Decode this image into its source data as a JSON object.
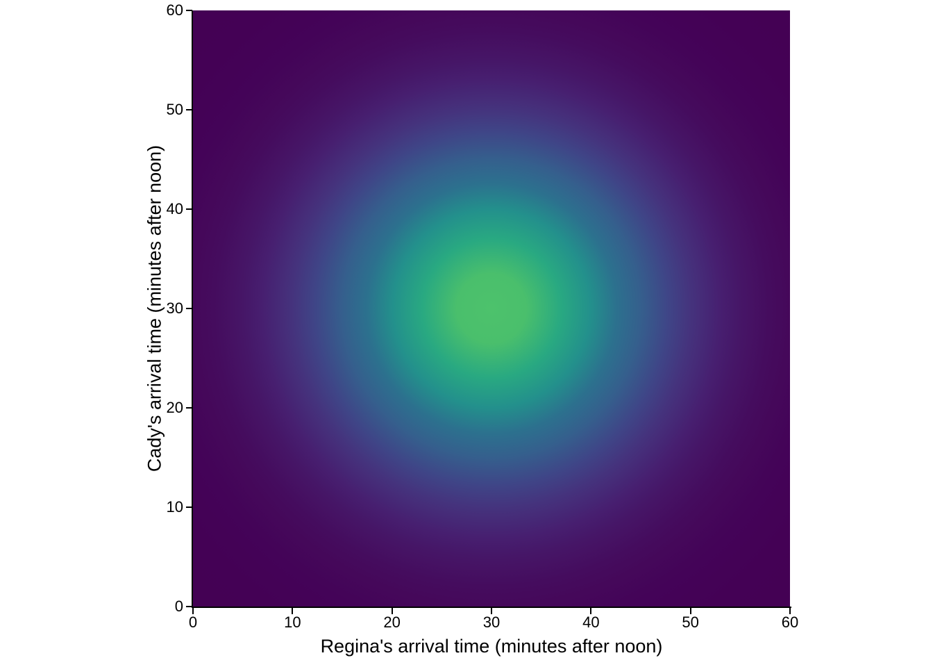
{
  "chart_data": {
    "type": "heatmap",
    "title": "",
    "xlabel": "Regina's arrival time (minutes after noon)",
    "ylabel": "Cady's arrival time (minutes after noon)",
    "xlim": [
      0,
      60
    ],
    "ylim": [
      0,
      60
    ],
    "x_ticks": [
      0,
      10,
      20,
      30,
      40,
      50,
      60
    ],
    "y_ticks": [
      0,
      10,
      20,
      30,
      40,
      50,
      60
    ],
    "grid": false,
    "legend": "none",
    "distribution": "bivariate normal joint density, independent coordinates",
    "mean": [
      30,
      30
    ],
    "sd_estimate": [
      11,
      11
    ],
    "colormap": "viridis",
    "peak_color": "#4dc26c",
    "min_color": "#440154",
    "gradient_stops": [
      {
        "pct": 0,
        "color": "#4dc26c"
      },
      {
        "pct": 8.2,
        "color": "#4abf6c"
      },
      {
        "pct": 16.4,
        "color": "#29a981"
      },
      {
        "pct": 23.5,
        "color": "#23908c"
      },
      {
        "pct": 29.6,
        "color": "#2c718e"
      },
      {
        "pct": 35.4,
        "color": "#355f8d"
      },
      {
        "pct": 41.9,
        "color": "#3f4587"
      },
      {
        "pct": 47.2,
        "color": "#45337d"
      },
      {
        "pct": 54.3,
        "color": "#471f70"
      },
      {
        "pct": 58.9,
        "color": "#461667"
      },
      {
        "pct": 65.8,
        "color": "#450c5e"
      },
      {
        "pct": 70.7,
        "color": "#45085a"
      },
      {
        "pct": 77.3,
        "color": "#440358"
      },
      {
        "pct": 87.2,
        "color": "#440155"
      },
      {
        "pct": 100,
        "color": "#440154"
      }
    ]
  },
  "colors": {
    "axis": "#000000",
    "background": "#ffffff",
    "text": "#000000"
  }
}
